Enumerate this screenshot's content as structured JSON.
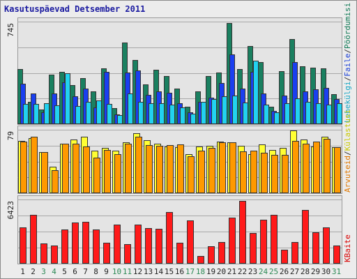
{
  "chart_data": {
    "type": "bar",
    "title": "Kasutuspäevad Detsember 2011",
    "categories": [
      "1",
      "2",
      "3",
      "4",
      "5",
      "6",
      "7",
      "8",
      "9",
      "10",
      "11",
      "12",
      "13",
      "14",
      "15",
      "16",
      "17",
      "18",
      "19",
      "20",
      "21",
      "22",
      "23",
      "24",
      "25",
      "26",
      "27",
      "28",
      "29",
      "30",
      "31"
    ],
    "weekend_days": [
      "3",
      "4",
      "10",
      "11",
      "17",
      "18",
      "24",
      "25",
      "31"
    ],
    "colors": {
      "frame_bg": "#ececec",
      "plot_bg": "#e4e4e4",
      "title": "#1a1aa0",
      "grid": "#a8a8a8",
      "weekday_label": "#222222",
      "weekend_label": "#2e8b57",
      "label_green": "#117a56",
      "label_blue": "#1a3fd6",
      "label_cyan": "#1aa7c4",
      "label_orange": "#e07800",
      "label_yellow": "#c8c800",
      "label_red": "#d80000"
    },
    "panels": [
      {
        "id": "visits",
        "ymax_label": "745",
        "ymax": 745,
        "series": [
          {
            "name": "Pöördumisi",
            "color": "#1a8060",
            "values": [
              398,
              160,
              107,
              361,
              380,
              285,
              336,
              240,
              405,
              115,
              592,
              465,
              290,
              397,
              352,
              258,
              125,
              240,
              351,
              377,
              737,
              400,
              570,
              450,
              125,
              383,
              620,
              420,
              410,
              405,
              220
            ]
          },
          {
            "name": "Faile",
            "color": "#1a3ff0",
            "values": [
              295,
              225,
              85,
              222,
              305,
              205,
              256,
              120,
              380,
              70,
              375,
              390,
              215,
              240,
              230,
              150,
              85,
              163,
              195,
              300,
              508,
              258,
              380,
              222,
              94,
              210,
              450,
              240,
              255,
              265,
              180
            ]
          },
          {
            "name": "Lehekülgi",
            "color": "#22d2f0",
            "values": [
              145,
              148,
              150,
              138,
              370,
              132,
              162,
              170,
              146,
              65,
              225,
              160,
              152,
              150,
              140,
              120,
              78,
              160,
              180,
              205,
              210,
              155,
              460,
              140,
              85,
              150,
              190,
              160,
              150,
              140,
              150
            ]
          }
        ]
      },
      {
        "id": "sites",
        "ymax_label": "79",
        "ymax": 79,
        "series": [
          {
            "name": "Külastusi",
            "color": "#ffff33",
            "values": [
              65,
              69,
              51,
              33,
              62,
              67,
              70,
              53,
              56,
              53,
              63,
              75,
              66,
              62,
              58,
              57,
              49,
              58,
              59,
              64,
              63,
              59,
              49,
              61,
              54,
              56,
              78,
              67,
              58,
              70,
              57
            ]
          },
          {
            "name": "Arvuteid",
            "color": "#ff9900",
            "values": [
              64,
              70,
              51,
              29,
              62,
              62,
              58,
              44,
              54,
              49,
              62,
              70,
              60,
              59,
              60,
              61,
              46,
              53,
              56,
              63,
              63,
              52,
              53,
              50,
              48,
              48,
              65,
              62,
              64,
              68,
              57
            ]
          }
        ]
      },
      {
        "id": "kbytes",
        "ymax_label": "6423",
        "ymax": 6423,
        "series": [
          {
            "name": "KBaite",
            "color": "#ff1a1a",
            "values": [
              3650,
              4870,
              2030,
              1800,
              3390,
              4110,
              4210,
              3390,
              2110,
              3930,
              1980,
              3920,
              3530,
              3470,
              5150,
              2110,
              4330,
              760,
              1720,
              2140,
              4640,
              6300,
              3080,
              4400,
              4920,
              1390,
              2140,
              5370,
              3110,
              3610,
              1850
            ]
          }
        ]
      }
    ],
    "legend_right": [
      {
        "text": "Pöördumisi",
        "color_key": "label_green"
      },
      {
        "text": "Faile",
        "color_key": "label_blue"
      },
      {
        "text": "Lehekülgi",
        "color_key": "label_cyan"
      },
      {
        "text": "Külastusi",
        "color_key": "label_yellow"
      },
      {
        "text": "Arvuteid",
        "color_key": "label_orange"
      },
      {
        "text": "KBaite",
        "color_key": "label_red"
      }
    ],
    "legend_separator": "/"
  }
}
